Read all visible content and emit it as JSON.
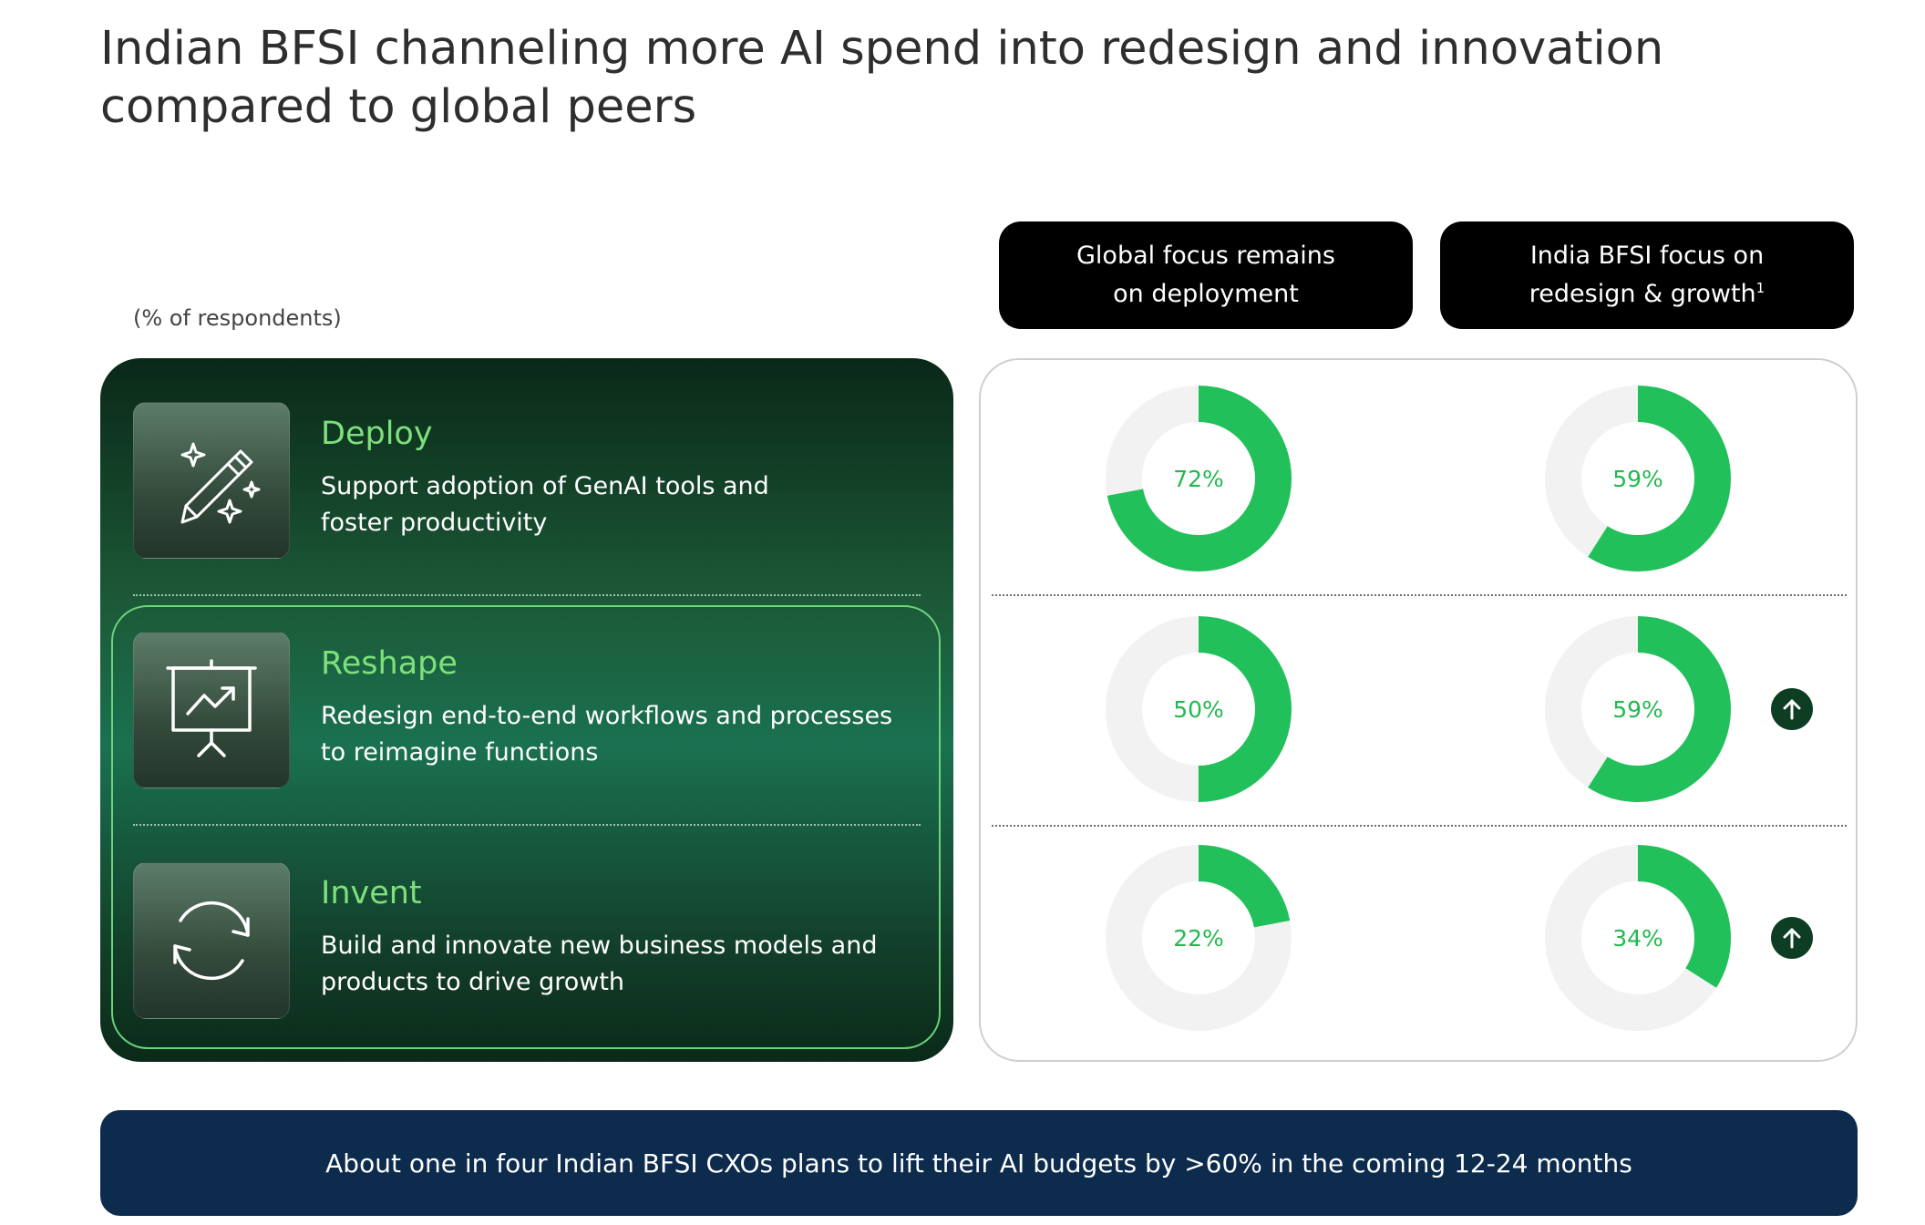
{
  "title": {
    "line1": "Indian BFSI channeling more AI spend into redesign and innovation",
    "line2": "compared to global peers"
  },
  "unit_note": "(% of respondents)",
  "columns": {
    "global": {
      "line1": "Global focus remains",
      "line2": "on deployment"
    },
    "india": {
      "line1": "India BFSI focus on",
      "line2": "redesign & growth",
      "footnote": "1"
    }
  },
  "categories": [
    {
      "title": "Deploy",
      "desc_line1": "Support adoption of GenAI tools and",
      "desc_line2": "foster productivity",
      "icon": "pencil-sparkles-icon"
    },
    {
      "title": "Reshape",
      "desc_line1": "Redesign end-to-end workflows and processes",
      "desc_line2": "to reimagine functions",
      "icon": "presentation-chart-icon"
    },
    {
      "title": "Invent",
      "desc_line1": "Build and innovate new business models and",
      "desc_line2": "products to drive growth",
      "icon": "refresh-cycle-icon"
    }
  ],
  "chart_data": {
    "type": "donut",
    "unit": "% of respondents",
    "categories": [
      "Deploy",
      "Reshape",
      "Invent"
    ],
    "series": [
      {
        "name": "Global focus remains on deployment",
        "values": [
          72,
          50,
          22
        ],
        "labels": [
          "72%",
          "50%",
          "22%"
        ]
      },
      {
        "name": "India BFSI focus on redesign & growth",
        "values": [
          59,
          59,
          34
        ],
        "labels": [
          "59%",
          "59%",
          "34%"
        ]
      }
    ],
    "india_higher_indicator": [
      false,
      true,
      true
    ]
  },
  "colors": {
    "donut_fill": "#22c05a",
    "donut_track": "#f2f2f2",
    "label": "#22b94f",
    "arrow_bg": "#0d3d22",
    "footer_bg": "#0d2b4d"
  },
  "footer": {
    "text": "About one in four Indian BFSI CXOs plans to lift their AI budgets by >60% in the coming 12-24 months"
  }
}
